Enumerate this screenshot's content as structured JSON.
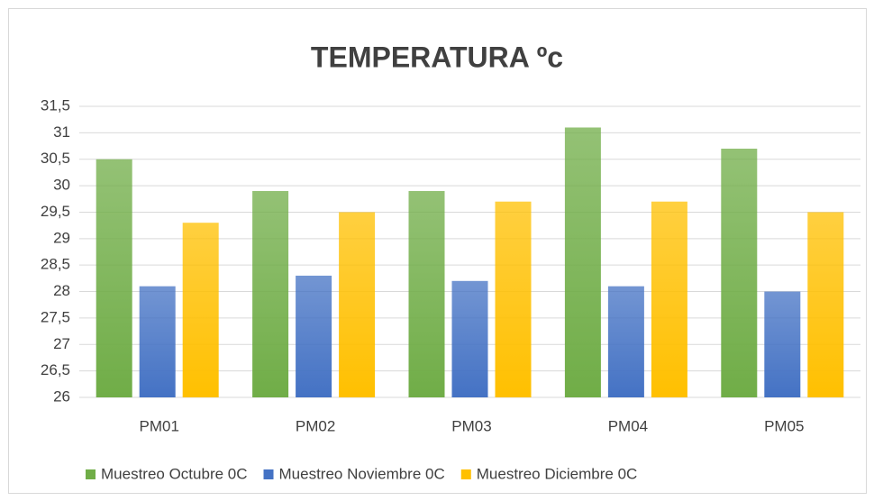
{
  "chart_data": {
    "type": "bar",
    "title": "TEMPERATURA ºc",
    "categories": [
      "PM01",
      "PM02",
      "PM03",
      "PM04",
      "PM05"
    ],
    "series": [
      {
        "name": "Muestreo Octubre 0C",
        "color": "#70ad47",
        "values": [
          30.5,
          29.9,
          29.9,
          31.1,
          30.7
        ]
      },
      {
        "name": "Muestreo Noviembre 0C",
        "color": "#4472c4",
        "values": [
          28.1,
          28.3,
          28.2,
          28.1,
          28.0
        ]
      },
      {
        "name": "Muestreo Diciembre 0C",
        "color": "#ffc000",
        "values": [
          29.3,
          29.5,
          29.7,
          29.7,
          29.5
        ]
      }
    ],
    "ylim": [
      26,
      31.5
    ],
    "yticks": [
      26,
      {
        "value": 26.5,
        "label": "26,5"
      },
      27,
      {
        "value": 27.5,
        "label": "27,5"
      },
      28,
      {
        "value": 28.5,
        "label": "28,5"
      },
      29,
      {
        "value": 29.5,
        "label": "29,5"
      },
      30,
      {
        "value": 30.5,
        "label": "30,5"
      },
      31,
      {
        "value": 31.5,
        "label": "31,5"
      }
    ],
    "grid": true,
    "legend": "bottom"
  }
}
